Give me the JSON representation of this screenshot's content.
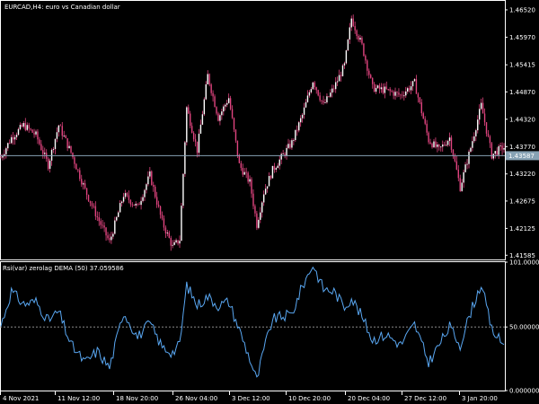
{
  "window": {
    "title": "EURCAD,H4:  euro vs Canadian dollar"
  },
  "indicator": {
    "title": "Rsi(var) zerolag DEMA (50) 37.059586",
    "ticks": [
      "101.000000",
      "50.000000",
      "0.000000"
    ]
  },
  "price_axis": {
    "ticks": [
      "1.46520",
      "1.45970",
      "1.45415",
      "1.44870",
      "1.44320",
      "1.43770",
      "1.43220",
      "1.42675",
      "1.42125",
      "1.41585"
    ],
    "current": "1.43587"
  },
  "time_axis": {
    "ticks": [
      "4 Nov 2021",
      "11 Nov 12:00",
      "18 Nov 20:00",
      "26 Nov 04:00",
      "3 Dec 12:00",
      "10 Dec 20:00",
      "20 Dec 04:00",
      "27 Dec 12:00",
      "3 Jan 20:00"
    ]
  },
  "colors": {
    "background": "#000000",
    "grid": "#ffffff",
    "text": "#ffffff",
    "candle": "#e0447f",
    "candle_light": "#ffffff",
    "indicator_line": "#59a7f2",
    "current_price": "#87a2b4",
    "level_line": "#a0a0a0"
  },
  "chart_data": {
    "type": "line",
    "price": {
      "ylim": [
        1.415,
        1.467
      ],
      "current": 1.43587,
      "keypoints": [
        [
          0,
          1.4355
        ],
        [
          6,
          1.4395
        ],
        [
          13,
          1.442
        ],
        [
          20,
          1.44
        ],
        [
          27,
          1.434
        ],
        [
          33,
          1.442
        ],
        [
          40,
          1.4365
        ],
        [
          48,
          1.429
        ],
        [
          55,
          1.4235
        ],
        [
          62,
          1.4185
        ],
        [
          70,
          1.428
        ],
        [
          78,
          1.4255
        ],
        [
          85,
          1.432
        ],
        [
          92,
          1.4225
        ],
        [
          98,
          1.4175
        ],
        [
          102,
          1.419
        ],
        [
          106,
          1.4455
        ],
        [
          112,
          1.437
        ],
        [
          118,
          1.452
        ],
        [
          124,
          1.4435
        ],
        [
          130,
          1.4475
        ],
        [
          136,
          1.434
        ],
        [
          142,
          1.4305
        ],
        [
          146,
          1.422
        ],
        [
          150,
          1.4285
        ],
        [
          155,
          1.433
        ],
        [
          160,
          1.4355
        ],
        [
          166,
          1.4385
        ],
        [
          172,
          1.444
        ],
        [
          178,
          1.451
        ],
        [
          184,
          1.446
        ],
        [
          190,
          1.4495
        ],
        [
          196,
          1.454
        ],
        [
          200,
          1.4635
        ],
        [
          206,
          1.458
        ],
        [
          212,
          1.4495
        ],
        [
          220,
          1.449
        ],
        [
          228,
          1.448
        ],
        [
          236,
          1.4505
        ],
        [
          244,
          1.439
        ],
        [
          250,
          1.437
        ],
        [
          256,
          1.4395
        ],
        [
          262,
          1.4295
        ],
        [
          268,
          1.4375
        ],
        [
          274,
          1.446
        ],
        [
          280,
          1.436
        ],
        [
          286,
          1.4375
        ]
      ]
    },
    "indicator": {
      "ylim": [
        0,
        101
      ],
      "level": 50,
      "keypoints": [
        [
          0,
          51
        ],
        [
          6,
          78
        ],
        [
          13,
          68
        ],
        [
          20,
          70
        ],
        [
          27,
          55
        ],
        [
          33,
          62
        ],
        [
          40,
          36
        ],
        [
          48,
          22
        ],
        [
          55,
          31
        ],
        [
          62,
          18
        ],
        [
          70,
          62
        ],
        [
          78,
          42
        ],
        [
          85,
          53
        ],
        [
          92,
          34
        ],
        [
          98,
          30
        ],
        [
          102,
          36
        ],
        [
          106,
          83
        ],
        [
          112,
          67
        ],
        [
          118,
          74
        ],
        [
          124,
          67
        ],
        [
          130,
          70
        ],
        [
          136,
          48
        ],
        [
          142,
          25
        ],
        [
          146,
          8
        ],
        [
          150,
          32
        ],
        [
          155,
          56
        ],
        [
          160,
          58
        ],
        [
          166,
          60
        ],
        [
          172,
          82
        ],
        [
          178,
          99
        ],
        [
          184,
          80
        ],
        [
          190,
          78
        ],
        [
          196,
          66
        ],
        [
          200,
          73
        ],
        [
          206,
          58
        ],
        [
          212,
          40
        ],
        [
          220,
          44
        ],
        [
          228,
          36
        ],
        [
          236,
          52
        ],
        [
          244,
          22
        ],
        [
          250,
          36
        ],
        [
          256,
          50
        ],
        [
          262,
          36
        ],
        [
          268,
          62
        ],
        [
          274,
          84
        ],
        [
          280,
          48
        ],
        [
          286,
          37
        ]
      ]
    }
  }
}
